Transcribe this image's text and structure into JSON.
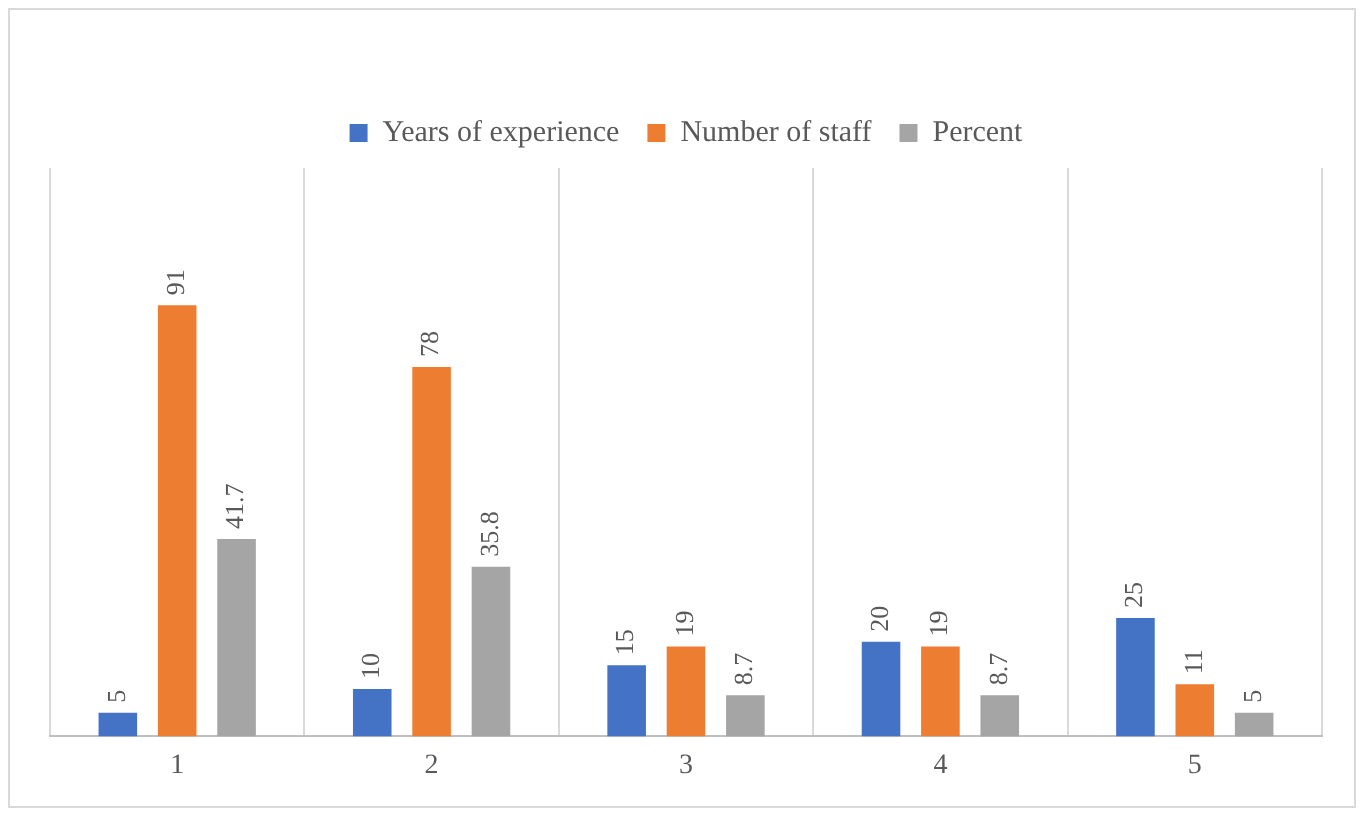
{
  "chart_data": {
    "type": "bar",
    "categories": [
      "1",
      "2",
      "3",
      "4",
      "5"
    ],
    "series": [
      {
        "name": "Years of experience",
        "color": "#4472c4",
        "values": [
          5,
          10,
          15,
          20,
          25
        ]
      },
      {
        "name": "Number of staff",
        "color": "#ed7d31",
        "values": [
          91,
          78,
          19,
          19,
          11
        ]
      },
      {
        "name": "Percent",
        "color": "#a5a5a5",
        "values": [
          41.7,
          35.8,
          8.7,
          8.7,
          5
        ]
      }
    ],
    "data_labels": true,
    "grid": "x",
    "legend": "top",
    "tick_labels": "x"
  }
}
